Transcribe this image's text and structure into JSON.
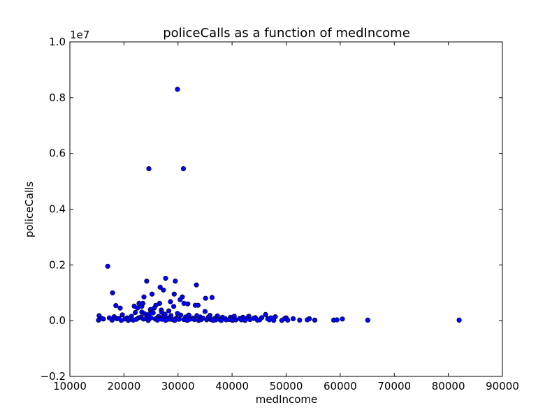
{
  "chart_data": {
    "type": "scatter",
    "title": "policeCalls as a function of medIncome",
    "xlabel": "medIncome",
    "ylabel": "policeCalls",
    "y_multiplier_label": "1e7",
    "xlim": [
      10000,
      90000
    ],
    "ylim": [
      -2000000,
      10000000
    ],
    "x_ticks": [
      10000,
      20000,
      30000,
      40000,
      50000,
      60000,
      70000,
      80000,
      90000
    ],
    "x_tick_labels": [
      "10000",
      "20000",
      "30000",
      "40000",
      "50000",
      "60000",
      "70000",
      "80000",
      "90000"
    ],
    "y_ticks": [
      -2000000,
      0,
      2000000,
      4000000,
      6000000,
      8000000,
      10000000
    ],
    "y_tick_labels": [
      "−0.2",
      "0.0",
      "0.2",
      "0.4",
      "0.6",
      "0.8",
      "1.0"
    ],
    "grid": false,
    "marker_color": "#0000ff",
    "points": [
      [
        29900,
        8300000
      ],
      [
        24600,
        5450000
      ],
      [
        31000,
        5450000
      ],
      [
        17000,
        1950000
      ],
      [
        27700,
        1520000
      ],
      [
        24200,
        1420000
      ],
      [
        29500,
        1420000
      ],
      [
        33400,
        1280000
      ],
      [
        26700,
        1200000
      ],
      [
        27300,
        1100000
      ],
      [
        17900,
        1000000
      ],
      [
        25200,
        950000
      ],
      [
        29300,
        950000
      ],
      [
        23700,
        850000
      ],
      [
        30800,
        850000
      ],
      [
        36300,
        830000
      ],
      [
        35100,
        800000
      ],
      [
        30400,
        750000
      ],
      [
        28600,
        680000
      ],
      [
        22800,
        620000
      ],
      [
        23500,
        620000
      ],
      [
        26600,
        620000
      ],
      [
        31100,
        620000
      ],
      [
        31800,
        600000
      ],
      [
        25900,
        550000
      ],
      [
        33200,
        550000
      ],
      [
        33700,
        550000
      ],
      [
        18500,
        540000
      ],
      [
        21900,
        520000
      ],
      [
        23300,
        510000
      ],
      [
        29200,
        510000
      ],
      [
        19300,
        450000
      ],
      [
        22500,
        450000
      ],
      [
        25600,
        450000
      ],
      [
        24900,
        400000
      ],
      [
        26900,
        380000
      ],
      [
        28300,
        350000
      ],
      [
        35000,
        330000
      ],
      [
        23300,
        310000
      ],
      [
        27000,
        300000
      ],
      [
        22100,
        290000
      ],
      [
        25400,
        280000
      ],
      [
        29900,
        260000
      ],
      [
        23800,
        250000
      ],
      [
        24700,
        240000
      ],
      [
        27600,
        230000
      ],
      [
        46200,
        220000
      ],
      [
        19700,
        210000
      ],
      [
        30500,
        200000
      ],
      [
        32000,
        200000
      ],
      [
        35900,
        190000
      ],
      [
        28700,
        180000
      ],
      [
        33500,
        180000
      ],
      [
        15400,
        180000
      ],
      [
        37300,
        170000
      ],
      [
        40400,
        160000
      ],
      [
        43100,
        160000
      ],
      [
        21400,
        160000
      ],
      [
        24400,
        150000
      ],
      [
        26400,
        150000
      ],
      [
        48000,
        140000
      ],
      [
        18200,
        140000
      ],
      [
        23100,
        130000
      ],
      [
        27200,
        130000
      ],
      [
        31400,
        130000
      ],
      [
        34100,
        130000
      ],
      [
        35600,
        120000
      ],
      [
        38200,
        120000
      ],
      [
        39700,
        120000
      ],
      [
        42000,
        120000
      ],
      [
        44300,
        110000
      ],
      [
        45500,
        110000
      ],
      [
        47200,
        100000
      ],
      [
        50000,
        100000
      ],
      [
        17300,
        100000
      ],
      [
        20600,
        100000
      ],
      [
        22700,
        100000
      ],
      [
        25000,
        100000
      ],
      [
        26100,
        90000
      ],
      [
        28100,
        90000
      ],
      [
        29700,
        90000
      ],
      [
        32700,
        90000
      ],
      [
        34600,
        90000
      ],
      [
        36800,
        80000
      ],
      [
        38700,
        80000
      ],
      [
        41400,
        80000
      ],
      [
        42700,
        80000
      ],
      [
        44000,
        80000
      ],
      [
        46600,
        70000
      ],
      [
        49700,
        70000
      ],
      [
        51300,
        70000
      ],
      [
        54300,
        70000
      ],
      [
        60400,
        60000
      ],
      [
        15900,
        80000
      ],
      [
        16200,
        60000
      ],
      [
        18700,
        70000
      ],
      [
        19100,
        80000
      ],
      [
        20200,
        60000
      ],
      [
        21100,
        60000
      ],
      [
        22300,
        50000
      ],
      [
        23600,
        60000
      ],
      [
        24100,
        70000
      ],
      [
        25800,
        60000
      ],
      [
        27000,
        50000
      ],
      [
        28400,
        50000
      ],
      [
        29000,
        40000
      ],
      [
        30200,
        50000
      ],
      [
        31100,
        40000
      ],
      [
        32200,
        50000
      ],
      [
        33000,
        40000
      ],
      [
        34300,
        40000
      ],
      [
        35300,
        30000
      ],
      [
        36100,
        40000
      ],
      [
        37000,
        30000
      ],
      [
        37800,
        30000
      ],
      [
        38900,
        30000
      ],
      [
        39500,
        40000
      ],
      [
        40700,
        30000
      ],
      [
        41700,
        30000
      ],
      [
        43300,
        40000
      ],
      [
        45100,
        30000
      ],
      [
        46900,
        30000
      ],
      [
        50300,
        20000
      ],
      [
        52500,
        20000
      ],
      [
        53900,
        30000
      ],
      [
        55300,
        20000
      ],
      [
        58800,
        20000
      ],
      [
        59400,
        30000
      ],
      [
        65100,
        20000
      ],
      [
        82000,
        20000
      ],
      [
        15300,
        20000
      ],
      [
        17800,
        20000
      ],
      [
        19500,
        10000
      ],
      [
        20800,
        10000
      ],
      [
        21700,
        20000
      ],
      [
        24500,
        10000
      ],
      [
        26200,
        20000
      ],
      [
        27700,
        10000
      ],
      [
        29400,
        10000
      ],
      [
        31700,
        10000
      ],
      [
        33800,
        10000
      ],
      [
        36500,
        10000
      ],
      [
        38000,
        10000
      ],
      [
        40100,
        10000
      ],
      [
        42400,
        10000
      ],
      [
        44700,
        20000
      ],
      [
        47700,
        10000
      ],
      [
        49200,
        10000
      ]
    ]
  }
}
